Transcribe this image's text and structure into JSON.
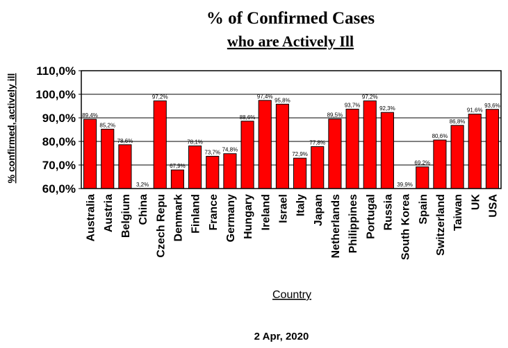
{
  "chart_data": {
    "type": "bar",
    "title": "% of Confirmed Cases",
    "subtitle": "who are Actively Ill",
    "ylabel": "% confirmed, actively ill",
    "xlabel": "Country",
    "footer": "2 Apr, 2020",
    "ylim": [
      60,
      110
    ],
    "yticks": [
      60,
      70,
      80,
      90,
      100,
      110
    ],
    "ytick_labels": [
      "60,0%",
      "70,0%",
      "80,0%",
      "90,0%",
      "100,0%",
      "110,0%"
    ],
    "grid": true,
    "bar_color": "#ff0000",
    "categories": [
      "Australia",
      "Austria",
      "Belgium",
      "China",
      "Czech Repu",
      "Denmark",
      "Finland",
      "France",
      "Germany",
      "Hungary",
      "Ireland",
      "Israel",
      "Italy",
      "Japan",
      "Netherlands",
      "Philippines",
      "Portugal",
      "Russia",
      "South Korea",
      "Spain",
      "Switzerland",
      "Taiwan",
      "UK",
      "USA"
    ],
    "values": [
      89.4,
      85.2,
      78.6,
      3.2,
      97.2,
      67.9,
      78.1,
      73.7,
      74.8,
      88.6,
      97.4,
      95.8,
      72.9,
      77.8,
      89.5,
      93.7,
      97.2,
      92.3,
      39.9,
      69.2,
      80.6,
      86.8,
      91.6,
      93.6
    ],
    "data_labels": [
      "89,4%",
      "85,2%",
      "78,6%",
      "3,2%",
      "97,2%",
      "67,9%",
      "78,1%",
      "73,7%",
      "74,8%",
      "88,6%",
      "97,4%",
      "95,8%",
      "72,9%",
      "77,8%",
      "89,5%",
      "93,7%",
      "97,2%",
      "92,3%",
      "39,9%",
      "69,2%",
      "80,6%",
      "86,8%",
      "91,6%",
      "93,6%"
    ]
  }
}
